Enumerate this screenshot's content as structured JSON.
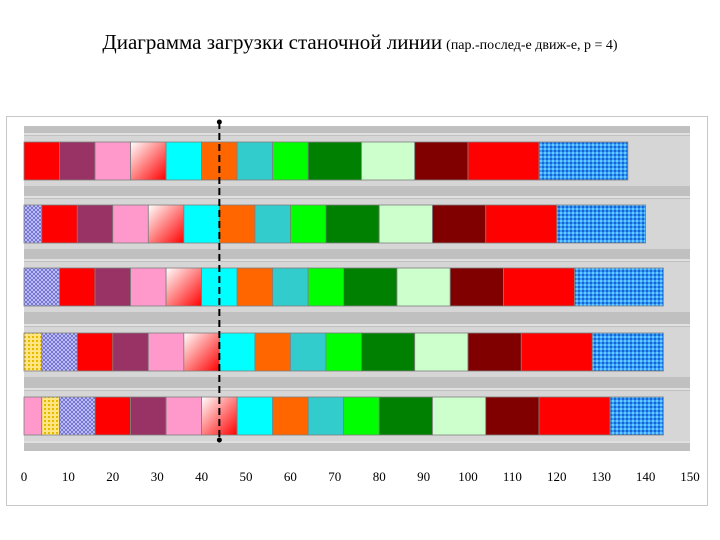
{
  "title": {
    "main": "Диаграмма загрузки станочной линии",
    "sub": "(пар.-послед-е движ-е, р = 4)"
  },
  "chart_data": {
    "type": "bar",
    "orientation": "horizontal-stacked",
    "xlim": [
      0,
      150
    ],
    "xticks": [
      "0",
      "10",
      "20",
      "30",
      "40",
      "50",
      "60",
      "70",
      "80",
      "90",
      "100",
      "110",
      "120",
      "130",
      "140",
      "150"
    ],
    "grid": true,
    "marker_line_x": 44,
    "rows": [
      {
        "segments": [
          {
            "start": 0,
            "end": 8,
            "color": "#ff0000"
          },
          {
            "start": 8,
            "end": 16,
            "color": "#993366"
          },
          {
            "start": 16,
            "end": 24,
            "color": "#ff99cc"
          },
          {
            "start": 24,
            "end": 32,
            "color": "#ff8080",
            "pattern": "gradient"
          },
          {
            "start": 32,
            "end": 40,
            "color": "#00ffff"
          },
          {
            "start": 40,
            "end": 48,
            "color": "#ff6600"
          },
          {
            "start": 48,
            "end": 56,
            "color": "#33cccc"
          },
          {
            "start": 56,
            "end": 64,
            "color": "#00ff00"
          },
          {
            "start": 64,
            "end": 76,
            "color": "#008000"
          },
          {
            "start": 76,
            "end": 88,
            "color": "#ccffcc"
          },
          {
            "start": 88,
            "end": 100,
            "color": "#800000"
          },
          {
            "start": 100,
            "end": 116,
            "color": "#ff0000"
          },
          {
            "start": 116,
            "end": 136,
            "color": "#3399ff",
            "pattern": "dots"
          }
        ]
      },
      {
        "segments": [
          {
            "start": 0,
            "end": 4,
            "color": "#9999ff",
            "pattern": "cross"
          },
          {
            "start": 4,
            "end": 12,
            "color": "#ff0000"
          },
          {
            "start": 12,
            "end": 20,
            "color": "#993366"
          },
          {
            "start": 20,
            "end": 28,
            "color": "#ff99cc"
          },
          {
            "start": 28,
            "end": 36,
            "color": "#ff8080",
            "pattern": "gradient"
          },
          {
            "start": 36,
            "end": 44,
            "color": "#00ffff"
          },
          {
            "start": 44,
            "end": 52,
            "color": "#ff6600"
          },
          {
            "start": 52,
            "end": 60,
            "color": "#33cccc"
          },
          {
            "start": 60,
            "end": 68,
            "color": "#00ff00"
          },
          {
            "start": 68,
            "end": 80,
            "color": "#008000"
          },
          {
            "start": 80,
            "end": 92,
            "color": "#ccffcc"
          },
          {
            "start": 92,
            "end": 104,
            "color": "#800000"
          },
          {
            "start": 104,
            "end": 120,
            "color": "#ff0000"
          },
          {
            "start": 120,
            "end": 140,
            "color": "#3399ff",
            "pattern": "dots"
          }
        ]
      },
      {
        "segments": [
          {
            "start": 0,
            "end": 8,
            "color": "#9999ff",
            "pattern": "cross"
          },
          {
            "start": 8,
            "end": 16,
            "color": "#ff0000"
          },
          {
            "start": 16,
            "end": 24,
            "color": "#993366"
          },
          {
            "start": 24,
            "end": 32,
            "color": "#ff99cc"
          },
          {
            "start": 32,
            "end": 40,
            "color": "#ff8080",
            "pattern": "gradient"
          },
          {
            "start": 40,
            "end": 48,
            "color": "#00ffff"
          },
          {
            "start": 48,
            "end": 56,
            "color": "#ff6600"
          },
          {
            "start": 56,
            "end": 64,
            "color": "#33cccc"
          },
          {
            "start": 64,
            "end": 72,
            "color": "#00ff00"
          },
          {
            "start": 72,
            "end": 84,
            "color": "#008000"
          },
          {
            "start": 84,
            "end": 96,
            "color": "#ccffcc"
          },
          {
            "start": 96,
            "end": 108,
            "color": "#800000"
          },
          {
            "start": 108,
            "end": 124,
            "color": "#ff0000"
          },
          {
            "start": 124,
            "end": 144,
            "color": "#3399ff",
            "pattern": "dots"
          }
        ]
      },
      {
        "segments": [
          {
            "start": 0,
            "end": 4,
            "color": "#ffcc66",
            "pattern": "dots"
          },
          {
            "start": 4,
            "end": 12,
            "color": "#9999ff",
            "pattern": "cross"
          },
          {
            "start": 12,
            "end": 20,
            "color": "#ff0000"
          },
          {
            "start": 20,
            "end": 28,
            "color": "#993366"
          },
          {
            "start": 28,
            "end": 36,
            "color": "#ff99cc"
          },
          {
            "start": 36,
            "end": 44,
            "color": "#ff8080",
            "pattern": "gradient"
          },
          {
            "start": 44,
            "end": 52,
            "color": "#00ffff"
          },
          {
            "start": 52,
            "end": 60,
            "color": "#ff6600"
          },
          {
            "start": 60,
            "end": 68,
            "color": "#33cccc"
          },
          {
            "start": 68,
            "end": 76,
            "color": "#00ff00"
          },
          {
            "start": 76,
            "end": 88,
            "color": "#008000"
          },
          {
            "start": 88,
            "end": 100,
            "color": "#ccffcc"
          },
          {
            "start": 100,
            "end": 112,
            "color": "#800000"
          },
          {
            "start": 112,
            "end": 128,
            "color": "#ff0000"
          },
          {
            "start": 128,
            "end": 144,
            "color": "#3399ff",
            "pattern": "dots"
          }
        ]
      },
      {
        "segments": [
          {
            "start": 0,
            "end": 4,
            "color": "#ff99cc"
          },
          {
            "start": 4,
            "end": 8,
            "color": "#ffcc66",
            "pattern": "dots"
          },
          {
            "start": 8,
            "end": 16,
            "color": "#9999ff",
            "pattern": "cross"
          },
          {
            "start": 16,
            "end": 24,
            "color": "#ff0000"
          },
          {
            "start": 24,
            "end": 32,
            "color": "#993366"
          },
          {
            "start": 32,
            "end": 40,
            "color": "#ff99cc"
          },
          {
            "start": 40,
            "end": 48,
            "color": "#ff8080",
            "pattern": "gradient"
          },
          {
            "start": 48,
            "end": 56,
            "color": "#00ffff"
          },
          {
            "start": 56,
            "end": 64,
            "color": "#ff6600"
          },
          {
            "start": 64,
            "end": 72,
            "color": "#33cccc"
          },
          {
            "start": 72,
            "end": 80,
            "color": "#00ff00"
          },
          {
            "start": 80,
            "end": 92,
            "color": "#008000"
          },
          {
            "start": 92,
            "end": 104,
            "color": "#ccffcc"
          },
          {
            "start": 104,
            "end": 116,
            "color": "#800000"
          },
          {
            "start": 116,
            "end": 132,
            "color": "#ff0000"
          },
          {
            "start": 132,
            "end": 144,
            "color": "#3399ff",
            "pattern": "dots"
          }
        ]
      }
    ]
  }
}
